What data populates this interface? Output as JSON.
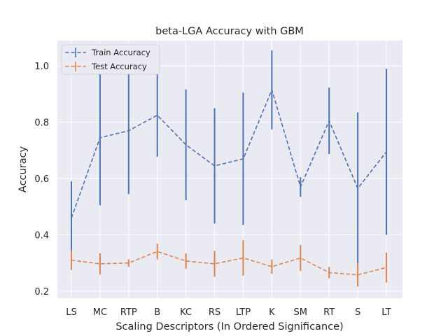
{
  "chart_data": {
    "type": "line",
    "title": "beta-LGA Accuracy with GBM",
    "xlabel": "Scaling Descriptors (In Ordered Significance)",
    "ylabel": "Accuracy",
    "categories": [
      "LS",
      "MC",
      "RTP",
      "B",
      "KC",
      "RS",
      "LTP",
      "K",
      "SM",
      "RT",
      "S",
      "LT"
    ],
    "ylim": [
      0.175,
      1.09
    ],
    "yticks": [
      0.2,
      0.4,
      0.6,
      0.8,
      1.0
    ],
    "ytick_labels": [
      "0.2",
      "0.4",
      "0.6",
      "0.8",
      "1.0"
    ],
    "grid": true,
    "legend_position": "top-left",
    "series": [
      {
        "name": "Train Accuracy",
        "color": "#4c72b0",
        "linestyle": "dashed",
        "values": [
          0.46,
          0.745,
          0.77,
          0.825,
          0.72,
          0.645,
          0.67,
          0.915,
          0.57,
          0.805,
          0.565,
          0.695
        ],
        "errors": [
          0.13,
          0.24,
          0.225,
          0.147,
          0.197,
          0.205,
          0.235,
          0.14,
          0.035,
          0.118,
          0.27,
          0.295
        ]
      },
      {
        "name": "Test Accuracy",
        "color": "#dd8452",
        "linestyle": "dashed",
        "values": [
          0.31,
          0.297,
          0.3,
          0.341,
          0.307,
          0.297,
          0.318,
          0.287,
          0.318,
          0.266,
          0.258,
          0.284
        ],
        "errors": [
          0.035,
          0.038,
          0.013,
          0.028,
          0.027,
          0.046,
          0.063,
          0.025,
          0.046,
          0.02,
          0.042,
          0.053
        ]
      }
    ]
  }
}
